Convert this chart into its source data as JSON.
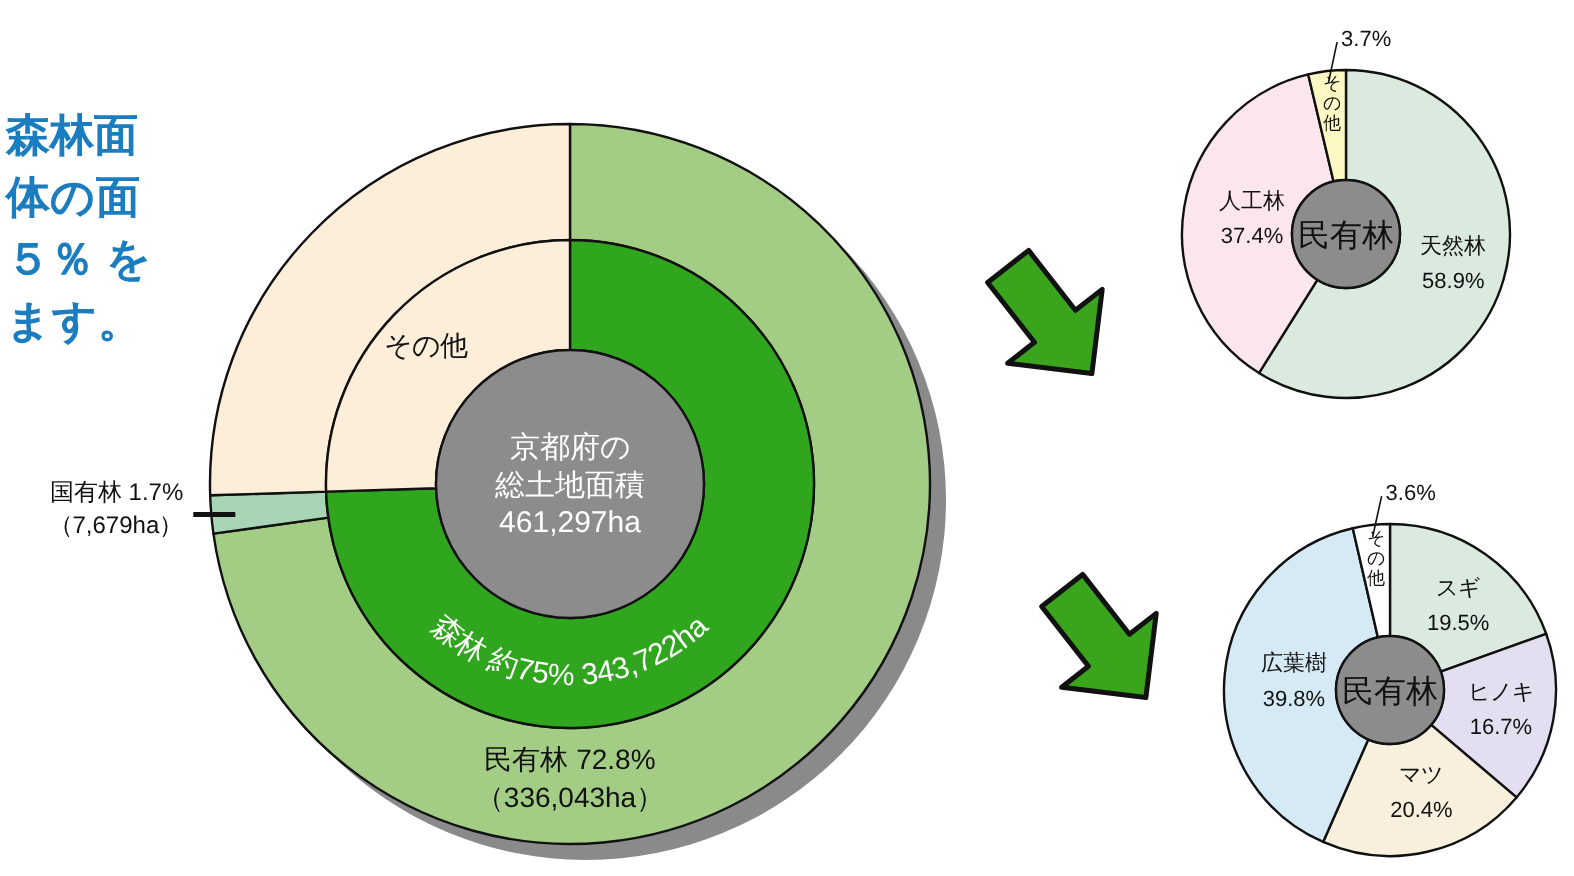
{
  "chart_data": [
    {
      "type": "donut",
      "annotations": [
        "森林面",
        "体の面",
        "５％ を",
        "ます。"
      ],
      "categories": [
        "民有林",
        "国有林",
        null
      ],
      "values": [
        72.8,
        1.7,
        25.5
      ],
      "colors": [
        "#a3cd85",
        "#a8d5b5",
        "#fdeeda"
      ],
      "value_labels": [
        "72.8%\n（336,043ha）",
        "1.7%\n（7,679ha）",
        null
      ]
    },
    {
      "type": "donut",
      "title": "京都府の総土地面積",
      "subtitle": "461,297ha",
      "categories": [
        "森林",
        "その他"
      ],
      "values": [
        74.5,
        25.5
      ],
      "colors": [
        "#2fa61d",
        "#fdeeda"
      ],
      "value_labels": [
        "約75%  343,722ha",
        null
      ]
    },
    {
      "type": "donut",
      "title": "民有林",
      "categories": [
        "天然林",
        "人工林",
        "その他"
      ],
      "values": [
        58.9,
        37.4,
        3.7
      ],
      "colors": [
        "#dbeadf",
        "#fce6ee",
        "#fdf7c3"
      ],
      "value_labels": [
        "58.9%",
        "37.4%",
        "3.7%"
      ]
    },
    {
      "type": "donut",
      "title": "民有林",
      "categories": [
        "スギ",
        "ヒノキ",
        "マツ",
        "広葉樹",
        "その他"
      ],
      "values": [
        19.5,
        16.7,
        20.4,
        39.8,
        3.6
      ],
      "colors": [
        "#dbeadf",
        "#e3dff0",
        "#f8f0dc",
        "#d6eaf6",
        "#ffffff"
      ],
      "value_labels": [
        "19.5%",
        "16.7%",
        "20.4%",
        "39.8%",
        "3.6%"
      ]
    }
  ]
}
